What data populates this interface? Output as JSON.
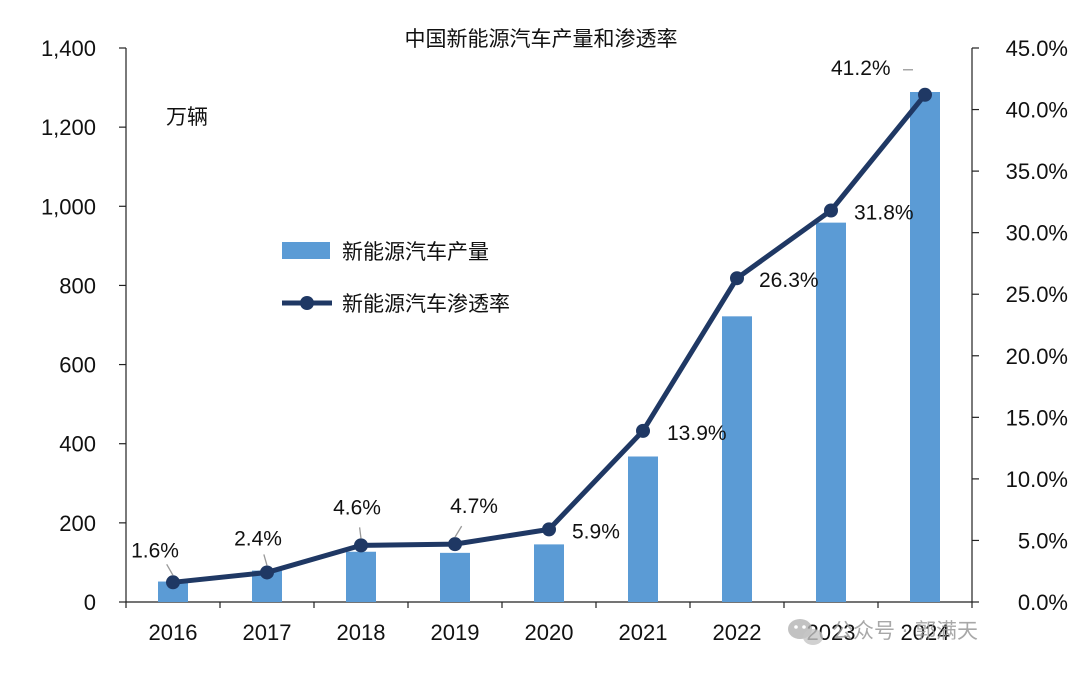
{
  "chart_data": {
    "type": "bar",
    "title": "中国新能源汽车产量和渗透率",
    "unit_label": "万辆",
    "categories": [
      "2016",
      "2017",
      "2018",
      "2019",
      "2020",
      "2021",
      "2022",
      "2023",
      "2024"
    ],
    "series": [
      {
        "name": "新能源汽车产量",
        "type": "bar",
        "axis": "left",
        "color": "#5b9bd5",
        "values": [
          51.7,
          79.4,
          127,
          124.2,
          145.6,
          367.7,
          721.9,
          958.7,
          1288.8
        ]
      },
      {
        "name": "新能源汽车渗透率",
        "type": "line",
        "axis": "right",
        "color": "#1f3864",
        "values": [
          1.6,
          2.4,
          4.6,
          4.7,
          5.9,
          13.9,
          26.3,
          31.8,
          41.2
        ],
        "labels": [
          "1.6%",
          "2.4%",
          "4.6%",
          "4.7%",
          "5.9%",
          "13.9%",
          "26.3%",
          "31.8%",
          "41.2%"
        ]
      }
    ],
    "y_left": {
      "min": 0,
      "max": 1400,
      "ticks": [
        0,
        200,
        400,
        600,
        800,
        1000,
        1200,
        1400
      ],
      "tick_labels": [
        "0",
        "200",
        "400",
        "600",
        "800",
        "1,000",
        "1,200",
        "1,400"
      ]
    },
    "y_right": {
      "min": 0,
      "max": 45,
      "ticks": [
        0,
        5,
        10,
        15,
        20,
        25,
        30,
        35,
        40,
        45
      ],
      "tick_labels": [
        "0.0%",
        "5.0%",
        "10.0%",
        "15.0%",
        "20.0%",
        "25.0%",
        "30.0%",
        "35.0%",
        "40.0%",
        "45.0%"
      ]
    },
    "grid": false,
    "legend_position": "center-left"
  },
  "watermark": {
    "icon": "wechat-icon",
    "text": "公众号 · 郭满天"
  }
}
